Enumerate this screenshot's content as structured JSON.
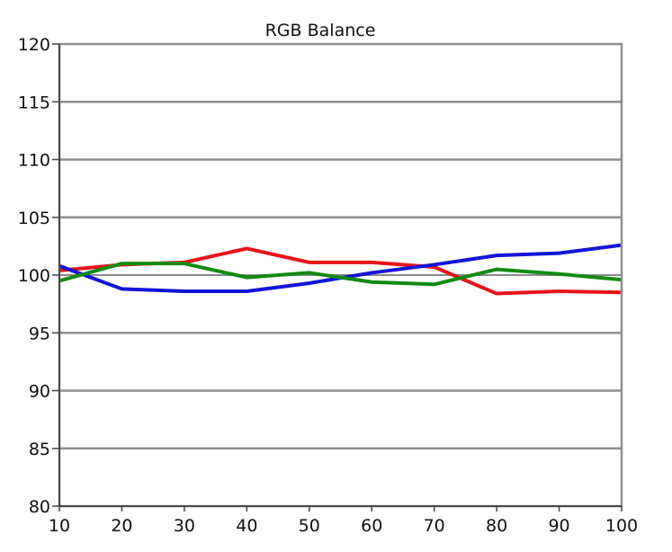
{
  "chart_data": {
    "type": "line",
    "title": "RGB Balance",
    "xlabel": "",
    "ylabel": "",
    "x": [
      10,
      20,
      30,
      40,
      50,
      60,
      70,
      80,
      90,
      100
    ],
    "xlim": [
      10,
      100
    ],
    "ylim": [
      80,
      120
    ],
    "yticks": [
      80,
      85,
      90,
      95,
      100,
      105,
      110,
      115,
      120
    ],
    "xticks": [
      10,
      20,
      30,
      40,
      50,
      60,
      70,
      80,
      90,
      100
    ],
    "grid": true,
    "reference_line": 100,
    "legend": "none",
    "series": [
      {
        "color": "#e8141b",
        "values": [
          100.4,
          100.9,
          101.1,
          102.3,
          101.1,
          101.1,
          100.7,
          98.4,
          98.6,
          98.5
        ]
      },
      {
        "color": "#1414d8",
        "values": [
          100.8,
          98.8,
          98.6,
          98.6,
          99.3,
          100.2,
          100.9,
          101.7,
          101.9,
          102.6
        ]
      },
      {
        "color": "#138a13",
        "values": [
          99.5,
          101.0,
          101.0,
          99.8,
          100.2,
          99.4,
          99.2,
          100.5,
          100.1,
          99.6
        ]
      }
    ]
  }
}
